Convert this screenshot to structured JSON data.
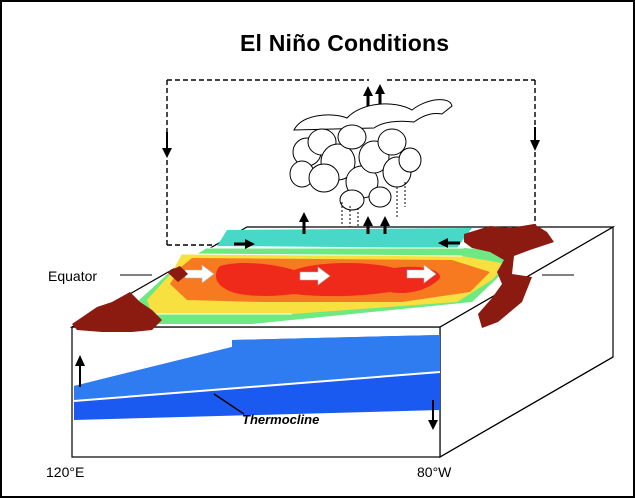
{
  "title": "El Niño Conditions",
  "labels": {
    "equator": "Equator",
    "thermocline": "Thermocline",
    "west_longitude": "120°E",
    "east_longitude": "80°W"
  },
  "colors": {
    "warm_core": "#f02a1a",
    "warm_ring": "#f87a20",
    "mid_ring": "#f8e040",
    "cool_ring": "#6ee882",
    "cold_band": "#48d8c8",
    "land": "#8b1a10",
    "deep_ocean": "#1a5af0",
    "mixed_layer": "#2f7cf0"
  }
}
